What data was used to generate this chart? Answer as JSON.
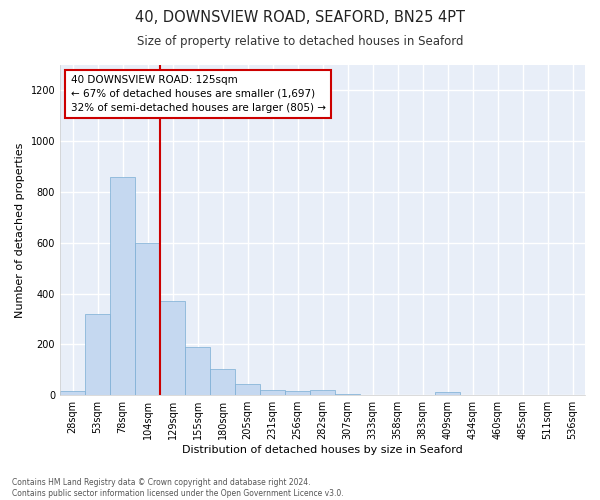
{
  "title": "40, DOWNSVIEW ROAD, SEAFORD, BN25 4PT",
  "subtitle": "Size of property relative to detached houses in Seaford",
  "xlabel": "Distribution of detached houses by size in Seaford",
  "ylabel": "Number of detached properties",
  "bar_color": "#c5d8f0",
  "bar_edge_color": "#7aadd4",
  "categories": [
    "28sqm",
    "53sqm",
    "78sqm",
    "104sqm",
    "129sqm",
    "155sqm",
    "180sqm",
    "205sqm",
    "231sqm",
    "256sqm",
    "282sqm",
    "307sqm",
    "333sqm",
    "358sqm",
    "383sqm",
    "409sqm",
    "434sqm",
    "460sqm",
    "485sqm",
    "511sqm",
    "536sqm"
  ],
  "values": [
    15,
    320,
    860,
    600,
    370,
    190,
    105,
    45,
    22,
    15,
    22,
    5,
    0,
    0,
    0,
    12,
    0,
    0,
    0,
    0,
    0
  ],
  "ylim": [
    0,
    1300
  ],
  "yticks": [
    0,
    200,
    400,
    600,
    800,
    1000,
    1200
  ],
  "red_line_index": 4,
  "annotation_title": "40 DOWNSVIEW ROAD: 125sqm",
  "annotation_line1": "← 67% of detached houses are smaller (1,697)",
  "annotation_line2": "32% of semi-detached houses are larger (805) →",
  "annotation_box_color": "#ffffff",
  "annotation_box_edge": "#cc0000",
  "red_line_color": "#cc0000",
  "plot_bg_color": "#e8eef8",
  "fig_bg_color": "#ffffff",
  "grid_color": "#ffffff",
  "footer_line1": "Contains HM Land Registry data © Crown copyright and database right 2024.",
  "footer_line2": "Contains public sector information licensed under the Open Government Licence v3.0."
}
